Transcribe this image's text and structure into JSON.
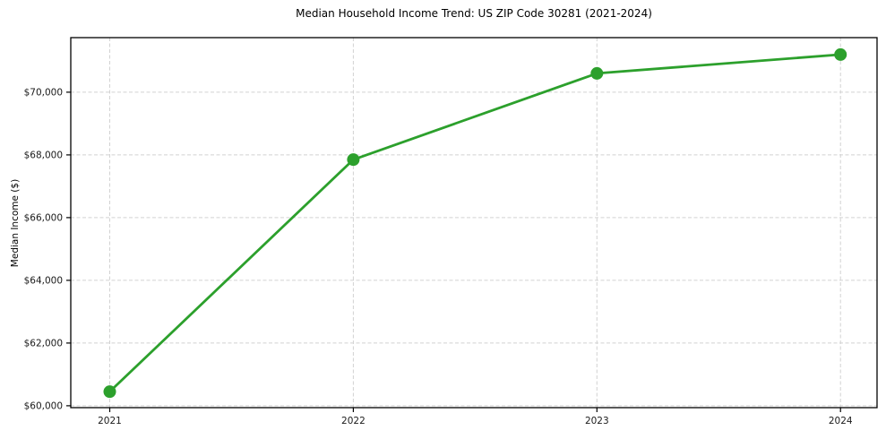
{
  "chart_data": {
    "type": "line",
    "title": "Median Household Income Trend: US ZIP Code 30281 (2021-2024)",
    "xlabel": "",
    "ylabel": "Median Income ($)",
    "x": [
      2021,
      2022,
      2023,
      2024
    ],
    "x_tick_labels": [
      "2021",
      "2022",
      "2023",
      "2024"
    ],
    "series": [
      {
        "name": "Median Household Income",
        "values": [
          60450,
          67850,
          70600,
          71200
        ]
      }
    ],
    "y_ticks": [
      60000,
      62000,
      64000,
      66000,
      68000,
      70000
    ],
    "y_tick_labels": [
      "$60,000",
      "$62,000",
      "$64,000",
      "$66,000",
      "$68,000",
      "$70,000"
    ],
    "xlim": [
      2020.84,
      2024.15
    ],
    "ylim": [
      59940,
      71740
    ],
    "grid": "on",
    "grid_style": "dashed",
    "legend": "none",
    "colors": {
      "line": "#2ca02c",
      "marker": "#2ca02c",
      "grid": "#d2d2d2",
      "frame": "#000000",
      "tick_text": "#1a1a1a",
      "title_text": "#000000",
      "background": "#ffffff"
    }
  }
}
